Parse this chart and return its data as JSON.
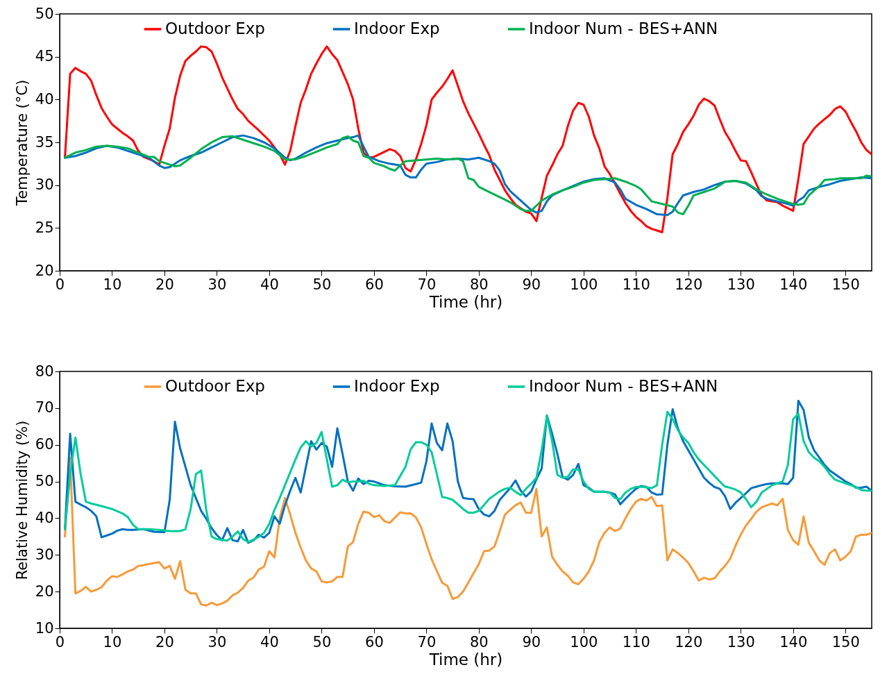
{
  "chart_data": [
    {
      "type": "line",
      "xlabel": "Time (hr)",
      "ylabel": "Temperature (°C)",
      "xlim": [
        0,
        155
      ],
      "xticks": [
        0,
        10,
        20,
        30,
        40,
        50,
        60,
        70,
        80,
        90,
        100,
        110,
        120,
        130,
        140,
        150
      ],
      "ylim": [
        20,
        50
      ],
      "yticks": [
        20,
        25,
        30,
        35,
        40,
        45,
        50
      ],
      "grid": false,
      "legend": "top",
      "series": [
        {
          "name": "Outdoor Exp",
          "color": "#ff0000",
          "x": [
            1,
            2,
            3,
            4,
            5,
            6,
            7,
            8,
            9,
            10,
            11,
            12,
            13,
            14,
            15,
            16,
            18,
            19,
            20,
            21,
            22,
            23,
            24,
            25,
            26,
            27,
            28,
            29,
            30,
            31,
            32,
            33,
            34,
            35,
            36,
            38,
            40,
            42,
            43,
            44,
            45,
            46,
            47,
            48,
            49,
            50,
            51,
            52,
            53,
            54,
            55,
            56,
            57,
            58,
            59,
            60,
            62,
            63,
            64,
            65,
            66,
            67,
            68,
            69,
            70,
            71,
            72,
            73,
            74,
            75,
            76,
            77,
            78,
            79,
            80,
            81,
            82,
            83,
            84,
            85,
            86,
            87,
            88,
            89,
            90,
            91,
            92,
            93,
            94,
            95,
            96,
            97,
            98,
            99,
            100,
            101,
            102,
            103,
            104,
            105,
            106,
            107,
            108,
            109,
            110,
            111,
            112,
            113,
            114,
            115,
            116,
            117,
            118,
            119,
            120,
            121,
            122,
            123,
            124,
            125,
            126,
            127,
            128,
            129,
            130,
            131,
            132,
            133,
            134,
            135,
            136,
            137,
            138,
            139,
            140,
            141,
            142,
            143,
            144,
            145,
            146,
            147,
            148,
            149,
            150,
            151,
            152,
            153,
            154,
            155
          ],
          "values": [
            33.2,
            43,
            43.7,
            43.3,
            43,
            42.2,
            40.5,
            39,
            38,
            37.1,
            36.6,
            36.1,
            35.7,
            35.2,
            34,
            33.3,
            32.8,
            32.4,
            34.6,
            36.6,
            40.2,
            42.8,
            44.5,
            45.1,
            45.6,
            46.2,
            46.1,
            45.6,
            44.2,
            42.6,
            41.3,
            40,
            38.9,
            38.3,
            37.5,
            36.4,
            35.2,
            33.6,
            32.4,
            34,
            36.9,
            39.6,
            41.2,
            43,
            44.2,
            45.3,
            46.2,
            45.3,
            44.6,
            43.2,
            41.8,
            40,
            36.6,
            33.8,
            33.2,
            33.3,
            33.9,
            34.2,
            34,
            33.4,
            32,
            31.6,
            33,
            34.8,
            37,
            40,
            40.8,
            41.5,
            42.4,
            43.4,
            41.6,
            39.8,
            38.4,
            37.2,
            36,
            34.7,
            33.5,
            31.8,
            30.6,
            29.4,
            28.5,
            27.7,
            27.3,
            26.9,
            26.7,
            25.8,
            28.5,
            31.1,
            32.3,
            33.6,
            34.6,
            36.9,
            38.7,
            39.6,
            39.4,
            38,
            35.8,
            34.3,
            32.2,
            31.3,
            30.2,
            29,
            27.9,
            27,
            26.3,
            25.8,
            25.2,
            24.9,
            24.7,
            24.5,
            28.5,
            33.6,
            34.8,
            36.2,
            37.1,
            38.1,
            39.4,
            40.1,
            39.8,
            39.3,
            37.7,
            36.2,
            35.2,
            34,
            32.9,
            32.8,
            31.5,
            30.1,
            28.8,
            28.2,
            28.1,
            28,
            27.6,
            27.3,
            27,
            30.7,
            34.8,
            35.7,
            36.6,
            37.2,
            37.7,
            38.2,
            38.9,
            39.2,
            38.6,
            37.4,
            36.3,
            35,
            34.1,
            33.6
          ]
        },
        {
          "name": "Indoor Exp",
          "color": "#0070c0",
          "x": [
            1,
            3,
            5,
            7,
            9,
            11,
            13,
            15,
            17,
            19,
            20,
            21,
            23,
            25,
            27,
            29,
            31,
            33,
            35,
            37,
            39,
            41,
            43,
            44,
            45,
            47,
            49,
            51,
            53,
            55,
            56,
            57,
            58,
            59,
            61,
            63,
            65,
            66,
            67,
            68,
            69,
            70,
            72,
            74,
            76,
            78,
            80,
            82,
            83,
            84,
            85,
            86,
            88,
            90,
            91,
            92,
            93,
            94,
            96,
            98,
            100,
            102,
            104,
            106,
            107,
            108,
            110,
            112,
            114,
            116,
            117,
            118,
            119,
            121,
            123,
            125,
            127,
            129,
            131,
            133,
            134,
            135,
            137,
            139,
            140,
            141,
            142,
            143,
            145,
            147,
            149,
            151,
            153,
            155
          ],
          "values": [
            33.2,
            33.4,
            33.8,
            34.3,
            34.6,
            34.4,
            34,
            33.6,
            33.2,
            32.3,
            32,
            32.1,
            32.9,
            33.4,
            33.8,
            34.4,
            35,
            35.6,
            35.8,
            35.5,
            35,
            34.3,
            33.2,
            32.9,
            33.1,
            33.8,
            34.4,
            34.9,
            35.2,
            35.5,
            35.6,
            35.8,
            34.5,
            33.3,
            32.8,
            32.5,
            32.3,
            31.2,
            30.9,
            30.9,
            31.8,
            32.5,
            32.7,
            33,
            33.1,
            33,
            33.2,
            32.8,
            32.5,
            31.7,
            30.1,
            29.3,
            28.2,
            27.1,
            26.8,
            27,
            28.1,
            28.8,
            29.4,
            29.9,
            30.4,
            30.7,
            30.8,
            30.3,
            29.5,
            28.4,
            27.7,
            27.2,
            26.6,
            26.5,
            26.9,
            27.9,
            28.8,
            29.2,
            29.5,
            30,
            30.4,
            30.5,
            30.2,
            29.4,
            28.7,
            28.4,
            28.1,
            27.8,
            27.6,
            28.2,
            28.6,
            29.4,
            29.8,
            30.1,
            30.5,
            30.7,
            30.9,
            30.8
          ]
        },
        {
          "name": "Indoor Num - BES+ANN",
          "color": "#00b050",
          "x": [
            1,
            3,
            5,
            7,
            9,
            11,
            13,
            15,
            17,
            18,
            19,
            21,
            22,
            23,
            25,
            27,
            29,
            31,
            33,
            35,
            37,
            39,
            41,
            42,
            43,
            45,
            47,
            49,
            51,
            53,
            54,
            55,
            56,
            57,
            58,
            59,
            60,
            61,
            62,
            63,
            64,
            65,
            66,
            68,
            70,
            72,
            74,
            76,
            77,
            78,
            79,
            80,
            82,
            84,
            86,
            88,
            89,
            90,
            91,
            92,
            94,
            96,
            98,
            100,
            102,
            104,
            106,
            108,
            110,
            111,
            112,
            113,
            115,
            117,
            118,
            119,
            120,
            121,
            123,
            125,
            127,
            129,
            131,
            133,
            135,
            137,
            139,
            140,
            141,
            142,
            143,
            145,
            146,
            148,
            149,
            151,
            153,
            154,
            155
          ],
          "values": [
            33.2,
            33.8,
            34.1,
            34.5,
            34.6,
            34.5,
            34.3,
            33.8,
            33.3,
            33.3,
            32.8,
            32.4,
            32.2,
            32.3,
            33.2,
            34.2,
            35,
            35.6,
            35.7,
            35.3,
            34.9,
            34.5,
            34,
            33.5,
            33,
            33,
            33.4,
            33.9,
            34.4,
            34.8,
            35.5,
            35.7,
            35.2,
            35,
            33.4,
            33.2,
            32.6,
            32.4,
            32.2,
            31.9,
            31.7,
            32.3,
            32.8,
            32.9,
            33,
            33.1,
            33,
            33.1,
            32.8,
            30.8,
            30.6,
            29.8,
            29.2,
            28.6,
            28,
            27.2,
            27,
            27,
            27.6,
            28.2,
            28.9,
            29.4,
            29.8,
            30.3,
            30.6,
            30.7,
            30.8,
            30.4,
            29.9,
            29.5,
            28.8,
            28.1,
            27.8,
            27.5,
            26.8,
            26.6,
            27.6,
            28.8,
            29.2,
            29.6,
            30.4,
            30.5,
            30.3,
            29.5,
            28.9,
            28.4,
            28,
            27.8,
            27.7,
            27.8,
            28.8,
            29.9,
            30.6,
            30.7,
            30.8,
            30.8,
            30.8,
            31.1,
            31
          ]
        }
      ]
    },
    {
      "type": "line",
      "xlabel": "Time (hr)",
      "ylabel": "Relative Humidity (%)",
      "xlim": [
        0,
        155
      ],
      "xticks": [
        0,
        10,
        20,
        30,
        40,
        50,
        60,
        70,
        80,
        90,
        100,
        110,
        120,
        130,
        140,
        150
      ],
      "ylim": [
        10,
        80
      ],
      "yticks": [
        10,
        20,
        30,
        40,
        50,
        60,
        70,
        80
      ],
      "grid": false,
      "legend": "top",
      "series": [
        {
          "name": "Outdoor Exp",
          "color": "#f79a38",
          "x": [
            1,
            2,
            3,
            4,
            5,
            6,
            7,
            8,
            9,
            10,
            11,
            12,
            13,
            14,
            15,
            16,
            17,
            18,
            19,
            20,
            21,
            22,
            23,
            24,
            25,
            26,
            27,
            28,
            29,
            30,
            31,
            32,
            33,
            34,
            35,
            36,
            37,
            38,
            39,
            40,
            41,
            42,
            43,
            44,
            45,
            46,
            47,
            48,
            49,
            50,
            51,
            52,
            53,
            54,
            55,
            56,
            57,
            58,
            59,
            60,
            61,
            62,
            63,
            64,
            65,
            66,
            67,
            68,
            69,
            70,
            71,
            72,
            73,
            74,
            75,
            76,
            77,
            78,
            79,
            80,
            81,
            82,
            83,
            84,
            85,
            86,
            87,
            88,
            89,
            90,
            91,
            92,
            93,
            94,
            95,
            96,
            97,
            98,
            99,
            100,
            101,
            102,
            103,
            104,
            105,
            106,
            107,
            108,
            109,
            110,
            111,
            112,
            113,
            114,
            115,
            116,
            117,
            118,
            119,
            120,
            121,
            122,
            123,
            124,
            125,
            126,
            127,
            128,
            129,
            130,
            131,
            132,
            133,
            134,
            135,
            136,
            137,
            138,
            139,
            140,
            141,
            142,
            143,
            144,
            145,
            146,
            147,
            148,
            149,
            150,
            151,
            152,
            153,
            154,
            155
          ],
          "values": [
            35,
            56.5,
            19.5,
            20.2,
            21.3,
            20,
            20.5,
            21.2,
            23,
            24.2,
            24,
            24.7,
            25.5,
            26,
            27,
            27.2,
            27.5,
            27.8,
            28,
            26.3,
            27,
            23.5,
            28.3,
            20.5,
            19.5,
            19.5,
            16.5,
            16.2,
            17,
            16.3,
            16.8,
            17.5,
            19,
            19.7,
            21,
            23,
            23.8,
            26,
            26.8,
            31,
            29.3,
            40,
            45.5,
            41,
            36,
            32,
            28.5,
            26.3,
            25.5,
            22.8,
            22.5,
            22.8,
            24,
            24,
            32.3,
            33.5,
            38.5,
            41.8,
            41.5,
            40.3,
            40.8,
            39.2,
            38.7,
            40.2,
            41.6,
            41.3,
            41.3,
            40.2,
            37.5,
            33,
            28.8,
            25.6,
            22.4,
            21.6,
            18,
            18.5,
            20,
            22.5,
            25,
            27.5,
            31,
            31.2,
            32.3,
            36.5,
            41,
            42.3,
            43.5,
            44.3,
            41.5,
            41.5,
            48,
            35,
            37.5,
            29.5,
            27.3,
            25.5,
            24.3,
            22.5,
            22,
            23.5,
            25.5,
            28.5,
            33.5,
            36,
            37.5,
            36.5,
            37.2,
            40,
            42.5,
            44.5,
            45.3,
            44.8,
            45.8,
            43.3,
            43.5,
            28.5,
            31.5,
            30.5,
            29.3,
            27.8,
            25.5,
            23,
            23.8,
            23.3,
            23.6,
            25.5,
            27,
            29,
            32.5,
            35.5,
            38,
            39.8,
            41.8,
            43,
            43.5,
            44,
            43.5,
            45.3,
            36.8,
            34,
            32.8,
            40.5,
            33.3,
            31,
            28.5,
            27.3,
            30.5,
            31.5,
            28.5,
            29.5,
            31,
            35,
            35.5,
            35.5,
            36
          ]
        },
        {
          "name": "Indoor Exp",
          "color": "#0070c0",
          "x": [
            1,
            2,
            3,
            4,
            5,
            6,
            7,
            8,
            9,
            10,
            11,
            12,
            13,
            14,
            16,
            18,
            20,
            21,
            22,
            23,
            24,
            25,
            26,
            27,
            28,
            29,
            30,
            31,
            32,
            33,
            34,
            35,
            36,
            37,
            38,
            39,
            40,
            41,
            42,
            43,
            44,
            45,
            46,
            47,
            48,
            49,
            50,
            51,
            52,
            53,
            54,
            55,
            56,
            57,
            58,
            59,
            60,
            62,
            64,
            66,
            68,
            69,
            70,
            71,
            72,
            73,
            74,
            75,
            76,
            77,
            78,
            79,
            80,
            81,
            82,
            83,
            84,
            85,
            86,
            87,
            88,
            89,
            90,
            91,
            92,
            93,
            94,
            95,
            96,
            97,
            98,
            99,
            100,
            101,
            102,
            104,
            105,
            106,
            107,
            108,
            109,
            110,
            111,
            112,
            113,
            114,
            115,
            116,
            117,
            118,
            119,
            120,
            121,
            122,
            123,
            124,
            125,
            126,
            127,
            128,
            129,
            130,
            131,
            132,
            133,
            134,
            135,
            136,
            138,
            139,
            140,
            141,
            142,
            143,
            144,
            145,
            146,
            147,
            148,
            149,
            150,
            151,
            152,
            153,
            154,
            155
          ],
          "values": [
            37,
            63,
            44.5,
            43.7,
            43,
            42,
            40.5,
            34.8,
            35.3,
            35.8,
            36.6,
            37,
            36.8,
            36.8,
            37,
            36.3,
            36.2,
            45,
            66.3,
            59,
            54,
            49,
            45.5,
            42,
            39.8,
            37.3,
            35.4,
            34,
            37.3,
            34,
            33.7,
            36.8,
            33.3,
            34,
            35.5,
            34.7,
            36,
            40.5,
            38.5,
            43.5,
            47.5,
            51,
            47,
            54,
            61,
            58.7,
            60.5,
            59.5,
            54,
            64.5,
            57.5,
            50,
            47.5,
            50.8,
            49.3,
            50.2,
            50,
            49,
            48.7,
            48.6,
            49.3,
            49.7,
            55.5,
            65.8,
            60.5,
            58.5,
            65.8,
            61,
            50,
            45.5,
            45.3,
            45.2,
            42.5,
            41,
            40.5,
            42,
            45,
            46.6,
            48.2,
            50.3,
            47.5,
            45.9,
            47.3,
            50.6,
            53.5,
            68,
            63,
            57.5,
            51.2,
            50.5,
            51.8,
            54.8,
            49,
            48.3,
            47.2,
            47.2,
            47,
            46.5,
            43.8,
            45.3,
            46.7,
            48,
            48.8,
            48.5,
            47,
            46.4,
            46.5,
            60,
            69.7,
            64.5,
            61,
            58.5,
            56,
            53.5,
            51,
            49.6,
            48.5,
            48,
            46,
            42.5,
            44.2,
            45.5,
            46.8,
            48.2,
            48.6,
            49,
            49.3,
            49.5,
            49.5,
            49.3,
            51,
            72,
            69.5,
            62,
            58.5,
            56.5,
            54.5,
            53,
            52,
            51,
            50,
            49.3,
            48.3,
            48.3,
            48.6,
            47.5
          ]
        },
        {
          "name": "Indoor Num - BES+ANN",
          "color": "#00cc99",
          "x": [
            1,
            2,
            3,
            4,
            5,
            6,
            8,
            10,
            12,
            13,
            14,
            15,
            17,
            19,
            21,
            23,
            24,
            25,
            26,
            27,
            28,
            29,
            30,
            32,
            33,
            34,
            35,
            36,
            38,
            39,
            40,
            41,
            42,
            43,
            44,
            45,
            46,
            47,
            48,
            49,
            50,
            51,
            52,
            53,
            54,
            55,
            56,
            57,
            58,
            59,
            60,
            62,
            64,
            66,
            67,
            68,
            69,
            70,
            71,
            72,
            73,
            74,
            75,
            76,
            77,
            78,
            79,
            80,
            81,
            82,
            83,
            84,
            85,
            86,
            87,
            88,
            89,
            90,
            91,
            92,
            93,
            94,
            95,
            96,
            97,
            98,
            99,
            100,
            101,
            102,
            104,
            105,
            106,
            107,
            108,
            109,
            110,
            111,
            112,
            113,
            114,
            115,
            116,
            117,
            118,
            119,
            120,
            121,
            122,
            123,
            124,
            125,
            126,
            127,
            128,
            129,
            130,
            131,
            132,
            133,
            134,
            135,
            136,
            137,
            138,
            139,
            140,
            141,
            142,
            143,
            144,
            145,
            146,
            147,
            148,
            149,
            150,
            151,
            152,
            153,
            154,
            155
          ],
          "values": [
            37,
            52,
            62,
            52,
            44.5,
            44,
            43.3,
            42.5,
            41.3,
            40.3,
            38.2,
            37,
            37,
            36.8,
            36.5,
            36.5,
            37,
            42.5,
            52,
            53,
            42,
            35,
            34.3,
            33.9,
            35,
            36.4,
            34.3,
            33.5,
            34.9,
            36,
            38.4,
            42.3,
            45.5,
            49,
            52.5,
            56,
            59.3,
            61,
            59.5,
            60.5,
            63.5,
            56,
            48.6,
            49,
            50.5,
            49.8,
            50,
            50,
            50.2,
            49.4,
            49,
            48.8,
            49,
            54,
            58.8,
            60.7,
            60.7,
            60,
            58,
            52,
            45.8,
            45.5,
            45,
            43.8,
            42.5,
            41.5,
            41.5,
            42,
            43.6,
            45.3,
            46.3,
            47.3,
            48,
            48.3,
            47.2,
            46.3,
            48,
            49.4,
            51,
            58.5,
            67.8,
            61,
            51.8,
            51,
            51.3,
            53.3,
            53.3,
            50,
            48,
            47.2,
            47.2,
            47,
            45.5,
            45.2,
            47,
            48,
            48.5,
            48.6,
            48.4,
            48.2,
            49,
            60,
            69,
            67,
            64,
            62,
            60.5,
            58,
            56,
            54.5,
            53,
            51.5,
            50,
            48.6,
            48.3,
            47.8,
            47,
            45.2,
            43,
            44.5,
            47,
            48,
            49,
            49.5,
            50,
            54.5,
            67,
            68.5,
            61,
            58,
            56.5,
            55.5,
            54,
            52,
            50.5,
            50,
            49.5,
            49,
            48.5,
            47.7,
            47.5,
            47.5
          ]
        }
      ]
    }
  ]
}
